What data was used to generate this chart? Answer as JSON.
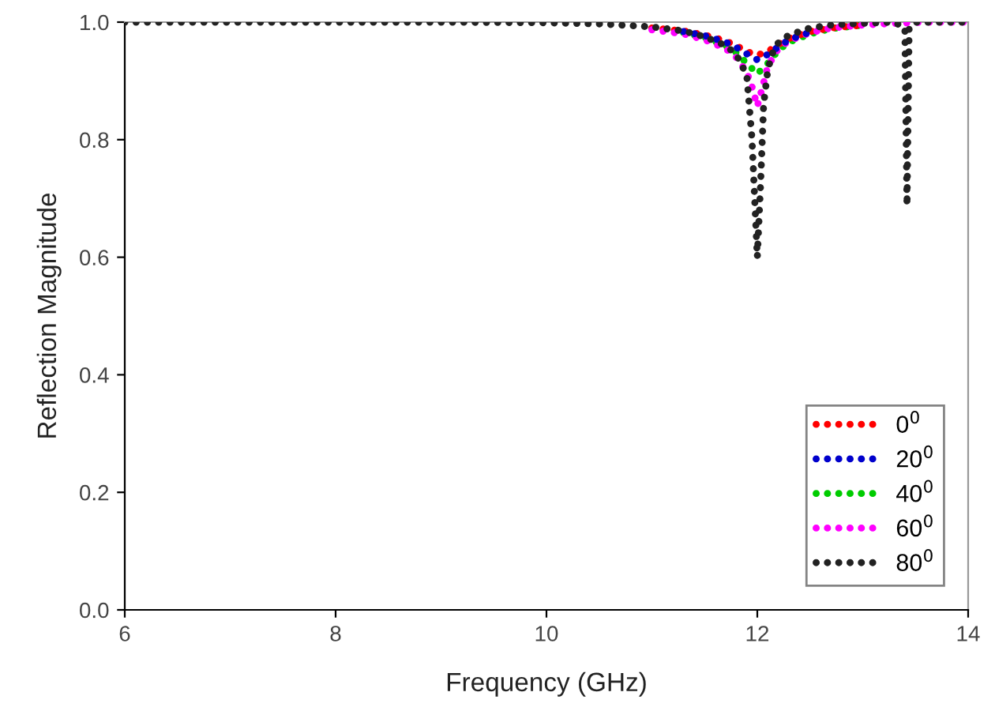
{
  "chart_data": {
    "type": "line",
    "xlabel": "Frequency (GHz)",
    "ylabel": "Reflection Magnitude",
    "xlim": [
      6,
      14
    ],
    "xticks": [
      6,
      8,
      10,
      12,
      14
    ],
    "ylim": [
      0,
      1
    ],
    "yticks": [
      {
        "value": 0,
        "label": "0.0"
      },
      0.2,
      0.4,
      0.6,
      0.8,
      {
        "value": 1,
        "label": "1.0"
      }
    ],
    "grid": false,
    "legend": "bottom right",
    "line_style": "dotted",
    "series": [
      {
        "name": "0$^{0}$",
        "color": "#ff0000",
        "x": [
          11,
          11.3,
          11.5,
          11.7,
          11.8,
          11.9,
          12.0,
          12.1,
          12.2,
          12.3,
          12.5,
          12.7,
          13
        ],
        "values": [
          0.99,
          0.985,
          0.978,
          0.968,
          0.96,
          0.95,
          0.944,
          0.95,
          0.962,
          0.972,
          0.984,
          0.99,
          0.995
        ]
      },
      {
        "name": "20$^{0}$",
        "color": "#0000cc",
        "x": [
          11.3,
          11.5,
          11.7,
          11.8,
          11.9,
          12.0,
          12.1,
          12.2,
          12.3,
          12.5
        ],
        "values": [
          0.984,
          0.977,
          0.966,
          0.957,
          0.946,
          0.936,
          0.945,
          0.958,
          0.97,
          0.983
        ]
      },
      {
        "name": "40$^{0}$",
        "color": "#00cc00",
        "x": [
          11.3,
          11.5,
          11.7,
          11.8,
          11.9,
          12.0,
          12.1,
          12.2,
          12.3,
          12.5,
          12.7,
          13
        ],
        "values": [
          0.982,
          0.974,
          0.96,
          0.948,
          0.93,
          0.912,
          0.93,
          0.952,
          0.966,
          0.98,
          0.989,
          0.995
        ]
      },
      {
        "name": "60$^{0}$",
        "color": "#ff00ff",
        "x": [
          11,
          11.3,
          11.5,
          11.7,
          11.8,
          11.9,
          11.95,
          12.0,
          12.05,
          12.1,
          12.2,
          12.3,
          12.5,
          12.7,
          13,
          13.3,
          13.6,
          14
        ],
        "values": [
          0.987,
          0.98,
          0.97,
          0.955,
          0.94,
          0.915,
          0.89,
          0.857,
          0.89,
          0.925,
          0.955,
          0.968,
          0.982,
          0.99,
          0.995,
          0.998,
          1.0,
          1.0
        ]
      },
      {
        "name": "80$^{0}$",
        "color": "#222222",
        "x": [
          6,
          8,
          9,
          10,
          10.5,
          11,
          11.3,
          11.5,
          11.7,
          11.8,
          11.9,
          11.95,
          12.0,
          12.03,
          12.06,
          12.1,
          12.15,
          12.2,
          12.3,
          12.5,
          12.7,
          13,
          13.3,
          13.4,
          13.42,
          13.44,
          13.5,
          13.7,
          14
        ],
        "values": [
          1.0,
          1.0,
          1.0,
          0.999,
          0.997,
          0.992,
          0.985,
          0.975,
          0.96,
          0.945,
          0.91,
          0.8,
          0.6,
          0.72,
          0.86,
          0.92,
          0.95,
          0.965,
          0.978,
          0.99,
          0.995,
          0.998,
          1.0,
          0.99,
          0.688,
          0.99,
          1.0,
          1.0,
          1.0
        ]
      }
    ]
  }
}
